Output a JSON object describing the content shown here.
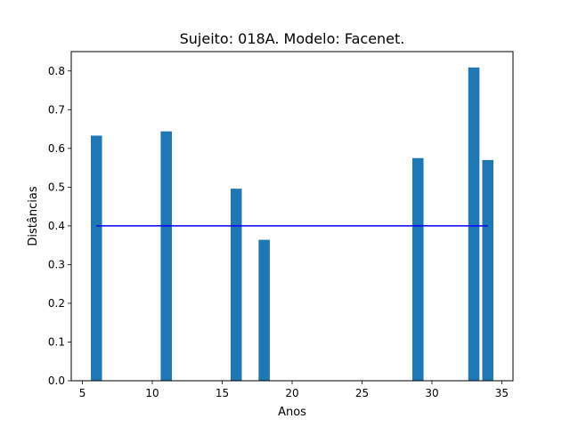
{
  "chart_data": {
    "type": "bar",
    "title": "Sujeito: 018A. Modelo: Facenet.",
    "xlabel": "Anos",
    "ylabel": "Distâncias",
    "x": [
      6,
      11,
      16,
      18,
      29,
      33,
      34
    ],
    "values": [
      0.633,
      0.644,
      0.496,
      0.364,
      0.575,
      0.809,
      0.57
    ],
    "bar_width": 0.8,
    "bar_color": "#1f77b4",
    "threshold": {
      "value": 0.4,
      "x_start": 6,
      "x_end": 34,
      "color": "#0000ff"
    },
    "xlim": [
      4.2,
      35.8
    ],
    "ylim": [
      0,
      0.85
    ],
    "xticks": [
      5,
      10,
      15,
      20,
      25,
      30,
      35
    ],
    "yticks": [
      0.0,
      0.1,
      0.2,
      0.3,
      0.4,
      0.5,
      0.6,
      0.7,
      0.8
    ],
    "grid": false
  }
}
